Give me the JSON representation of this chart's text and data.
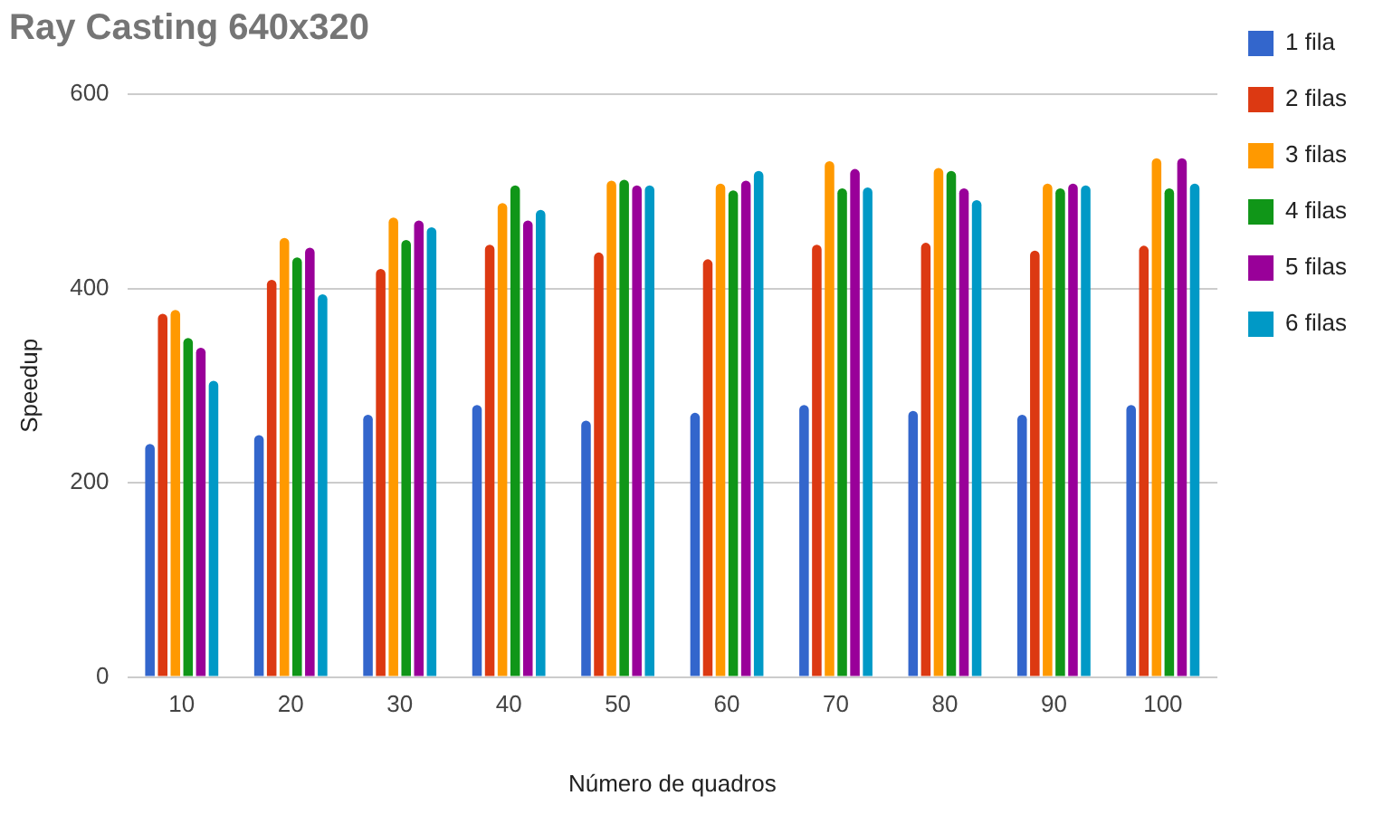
{
  "chart_data": {
    "type": "bar",
    "title": "Ray Casting 640x320",
    "xlabel": "Número de quadros",
    "ylabel": "Speedup",
    "categories": [
      "10",
      "20",
      "30",
      "40",
      "50",
      "60",
      "70",
      "80",
      "90",
      "100"
    ],
    "series": [
      {
        "name": "1 fila",
        "color": "#3366cc",
        "values": [
          240,
          249,
          270,
          280,
          264,
          272,
          280,
          274,
          270,
          280
        ]
      },
      {
        "name": "2 filas",
        "color": "#dc3912",
        "values": [
          374,
          409,
          420,
          445,
          437,
          430,
          445,
          447,
          439,
          444
        ]
      },
      {
        "name": "3 filas",
        "color": "#ff9900",
        "values": [
          378,
          452,
          473,
          488,
          511,
          508,
          531,
          524,
          508,
          534
        ]
      },
      {
        "name": "4 filas",
        "color": "#109618",
        "values": [
          349,
          432,
          450,
          506,
          512,
          501,
          503,
          521,
          503,
          503
        ]
      },
      {
        "name": "5 filas",
        "color": "#990099",
        "values": [
          339,
          442,
          470,
          470,
          506,
          511,
          523,
          503,
          508,
          534
        ]
      },
      {
        "name": "6 filas",
        "color": "#0099c6",
        "values": [
          305,
          394,
          463,
          481,
          506,
          521,
          504,
          491,
          506,
          508
        ]
      }
    ],
    "ylim": [
      0,
      600
    ],
    "yticks": [
      0,
      200,
      400,
      600
    ],
    "grid": "y",
    "legend": "right"
  }
}
